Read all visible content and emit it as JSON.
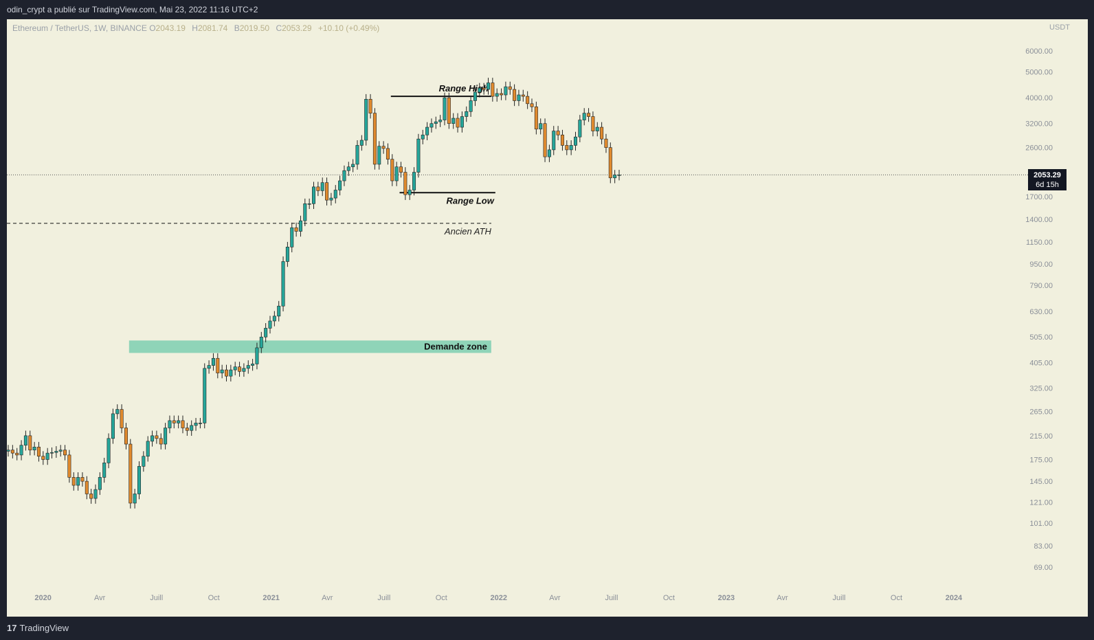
{
  "header": {
    "publisher": "odin_crypt a publié sur TradingView.com, Mai 23, 2022 11:16 UTC+2"
  },
  "legend": {
    "symbol": "Ethereum / TetherUS, 1W, BINANCE",
    "open_label": "O",
    "open": "2043.19",
    "high_label": "H",
    "high": "2081.74",
    "low_label": "B",
    "low": "2019.50",
    "close_label": "C",
    "close": "2053.29",
    "change": "+10.10 (+0.49%)"
  },
  "currency": "USDT",
  "price_tag": {
    "price": "2053.29",
    "countdown": "6d 15h"
  },
  "footer": {
    "brand": "TradingView",
    "logo_mark": "17"
  },
  "colors": {
    "up": "#26a69a",
    "down": "#e08a2e",
    "background": "#f1f0de",
    "zone": "#8fd4b8"
  },
  "chart_data": {
    "type": "candlestick",
    "symbol": "ETHUSDT",
    "interval": "1W",
    "y_scale": "log",
    "y_ticks": [
      6000,
      5000,
      4000,
      3200,
      2600,
      2053.29,
      1700,
      1400,
      1150,
      950,
      790,
      630,
      505,
      405,
      325,
      265,
      215,
      175,
      145,
      121,
      101,
      83,
      69
    ],
    "y_tick_labels": [
      "6000.00",
      "5000.00",
      "4000.00",
      "3200.00",
      "2600.00",
      "",
      "1700.00",
      "1400.00",
      "1150.00",
      "950.00",
      "790.00",
      "630.00",
      "505.00",
      "405.00",
      "325.00",
      "265.00",
      "215.00",
      "175.00",
      "145.00",
      "121.00",
      "101.00",
      "83.00",
      "69.00"
    ],
    "x_ticks": [
      {
        "label": "2020",
        "date": "2020-01",
        "bold": true
      },
      {
        "label": "Avr",
        "date": "2020-04"
      },
      {
        "label": "Juill",
        "date": "2020-07"
      },
      {
        "label": "Oct",
        "date": "2020-10"
      },
      {
        "label": "2021",
        "date": "2021-01",
        "bold": true
      },
      {
        "label": "Avr",
        "date": "2021-04"
      },
      {
        "label": "Juill",
        "date": "2021-07"
      },
      {
        "label": "Oct",
        "date": "2021-10"
      },
      {
        "label": "2022",
        "date": "2022-01",
        "bold": true
      },
      {
        "label": "Avr",
        "date": "2022-04"
      },
      {
        "label": "Juill",
        "date": "2022-07"
      },
      {
        "label": "Oct",
        "date": "2022-10"
      },
      {
        "label": "2023",
        "date": "2023-01",
        "bold": true
      },
      {
        "label": "Avr",
        "date": "2023-04"
      },
      {
        "label": "Juill",
        "date": "2023-07"
      },
      {
        "label": "Oct",
        "date": "2023-10"
      },
      {
        "label": "2024",
        "date": "2024-01",
        "bold": true
      }
    ],
    "annotations": {
      "range_high": {
        "label": "Range High",
        "price": 4050,
        "from_week": 88,
        "to_week": 111
      },
      "range_low": {
        "label": "Range Low",
        "price": 1760,
        "from_week": 90,
        "to_week": 111
      },
      "ancien_ath": {
        "label": "Ancien ATH",
        "price": 1350,
        "from_week": -7,
        "to_week": 111
      },
      "demand_zone": {
        "label": "Demande zone",
        "low": 440,
        "high": 490,
        "from_week": 28,
        "to_week": 111
      },
      "last_price": 2053.29
    },
    "start_date": "2019-11-04",
    "closes": [
      190,
      185,
      182,
      198,
      215,
      190,
      195,
      180,
      175,
      185,
      186,
      188,
      190,
      182,
      150,
      140,
      150,
      145,
      130,
      125,
      135,
      150,
      170,
      210,
      260,
      270,
      230,
      200,
      120,
      130,
      165,
      180,
      205,
      215,
      210,
      200,
      230,
      245,
      240,
      245,
      230,
      225,
      235,
      240,
      240,
      385,
      395,
      420,
      370,
      380,
      360,
      380,
      390,
      375,
      385,
      395,
      400,
      460,
      505,
      545,
      580,
      605,
      660,
      970,
      1100,
      1300,
      1260,
      1380,
      1600,
      1600,
      1850,
      1790,
      1920,
      1650,
      1680,
      1800,
      1950,
      2130,
      2200,
      2250,
      2650,
      2770,
      3950,
      3500,
      2250,
      2630,
      2580,
      2350,
      1950,
      2200,
      2100,
      1730,
      1800,
      2100,
      2800,
      2900,
      3100,
      3200,
      3250,
      3300,
      4000,
      3200,
      3350,
      3100,
      3400,
      3550,
      3900,
      4200,
      4350,
      4300,
      4550,
      4050,
      4150,
      4100,
      4400,
      4300,
      3900,
      4100,
      4050,
      3800,
      3700,
      3050,
      3200,
      2400,
      2550,
      3000,
      2900,
      2650,
      2550,
      2650,
      2850,
      3300,
      3500,
      3400,
      3000,
      3100,
      2800,
      2600,
      2000,
      2050,
      2053.29
    ],
    "legend_position": "top-left"
  }
}
